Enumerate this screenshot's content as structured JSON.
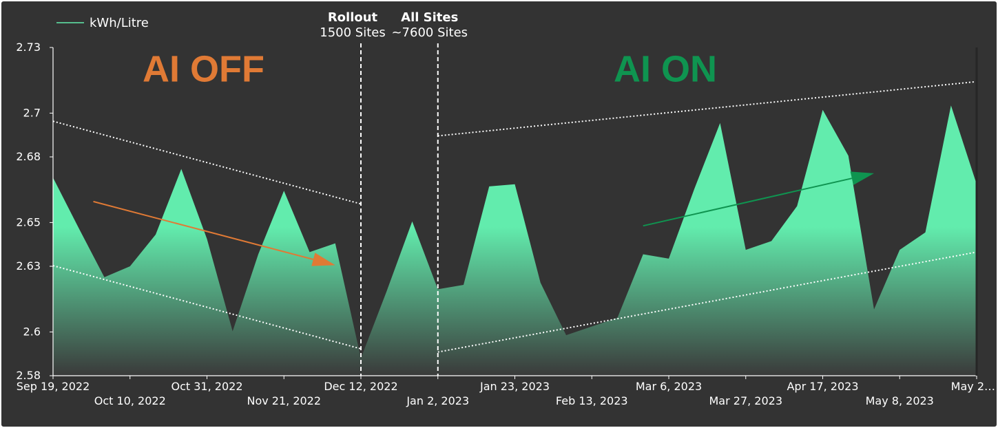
{
  "chart_data": {
    "type": "area",
    "xlim": [
      "2022-09-19",
      "2023-05-29"
    ],
    "ylim": [
      2.58,
      2.73
    ],
    "ytick_values": [
      2.58,
      2.6,
      2.63,
      2.65,
      2.68,
      2.7,
      2.73
    ],
    "ytick_labels": [
      "2.58",
      "2.6",
      "2.63",
      "2.65",
      "2.68",
      "2.7",
      "2.73"
    ],
    "xtick_labels": [
      "Sep 19, 2022",
      "Oct 10, 2022",
      "Oct 31, 2022",
      "Nov 21, 2022",
      "Dec 12, 2022",
      "Jan 2, 2023",
      "Jan 23, 2023",
      "Feb 13, 2023",
      "Mar 6, 2023",
      "Mar 27, 2023",
      "Apr 17, 2023",
      "May 8, 2023",
      "May 2…"
    ],
    "xtick_dates": [
      "2022-09-19",
      "2022-10-10",
      "2022-10-31",
      "2022-11-21",
      "2022-12-12",
      "2023-01-02",
      "2023-01-23",
      "2023-02-13",
      "2023-03-06",
      "2023-03-27",
      "2023-04-17",
      "2023-05-08",
      "2023-05-29"
    ],
    "series": [
      {
        "name": "kWh/Litre",
        "color": "#62ecad",
        "x": [
          "2022-09-19",
          "2022-09-26",
          "2022-10-03",
          "2022-10-10",
          "2022-10-17",
          "2022-10-24",
          "2022-10-31",
          "2022-11-07",
          "2022-11-14",
          "2022-11-21",
          "2022-11-28",
          "2022-12-05",
          "2022-12-12",
          "2022-12-19",
          "2022-12-26",
          "2023-01-02",
          "2023-01-09",
          "2023-01-16",
          "2023-01-23",
          "2023-01-30",
          "2023-02-06",
          "2023-02-13",
          "2023-02-20",
          "2023-02-27",
          "2023-03-06",
          "2023-03-13",
          "2023-03-20",
          "2023-03-27",
          "2023-04-03",
          "2023-04-10",
          "2023-04-17",
          "2023-04-24",
          "2023-05-01",
          "2023-05-08",
          "2023-05-15",
          "2023-05-22",
          "2023-05-29"
        ],
        "values": [
          2.6705,
          2.6475,
          2.625,
          2.63,
          2.6445,
          2.6745,
          2.6425,
          2.6003,
          2.6355,
          2.6645,
          2.6365,
          2.6405,
          2.588,
          2.6185,
          2.6505,
          2.6195,
          2.6215,
          2.6665,
          2.6675,
          2.6225,
          2.5985,
          2.6025,
          2.6065,
          2.6355,
          2.6335,
          2.6655,
          2.6955,
          2.6375,
          2.6415,
          2.6575,
          2.7015,
          2.6805,
          2.6103,
          2.6375,
          2.6455,
          2.7035,
          2.6675
        ]
      }
    ],
    "trend_lines": [
      {
        "x": [
          "2022-09-19",
          "2022-12-12"
        ],
        "y": [
          2.6963,
          2.6585
        ]
      },
      {
        "x": [
          "2022-09-19",
          "2022-12-12"
        ],
        "y": [
          2.6303,
          2.5923
        ]
      },
      {
        "x": [
          "2023-01-02",
          "2023-05-29"
        ],
        "y": [
          2.6896,
          2.7144
        ]
      },
      {
        "x": [
          "2023-01-02",
          "2023-05-29"
        ],
        "y": [
          2.5908,
          2.6365
        ]
      }
    ],
    "arrows": [
      {
        "color": "#e07a35",
        "x": [
          "2022-09-30",
          "2022-12-05"
        ],
        "y": [
          2.6596,
          2.6305
        ]
      },
      {
        "color": "#0f9450",
        "x": [
          "2023-02-27",
          "2023-05-01"
        ],
        "y": [
          2.6485,
          2.6725
        ]
      }
    ],
    "vlines": [
      {
        "x": "2022-12-12",
        "title": "Rollout",
        "subtitle": "1500 Sites"
      },
      {
        "x": "2023-01-02",
        "title": "All Sites",
        "subtitle": "~7600 Sites"
      }
    ],
    "annotations": [
      {
        "text": "AI OFF",
        "color": "#e07a35",
        "x": "2022-10-31",
        "y": 2.7145
      },
      {
        "text": "AI ON",
        "color": "#0f9450",
        "x": "2023-03-06",
        "y": 2.7145
      }
    ],
    "legend": {
      "label": "kWh/Litre",
      "position": "top-left"
    },
    "grid": false
  },
  "colors": {
    "background": "#333333",
    "frame": "#ffffff",
    "text": "#ffffff",
    "area_top": "#62ecad",
    "area_bottom": "#3a3a3a",
    "trend": "#ffffff"
  }
}
